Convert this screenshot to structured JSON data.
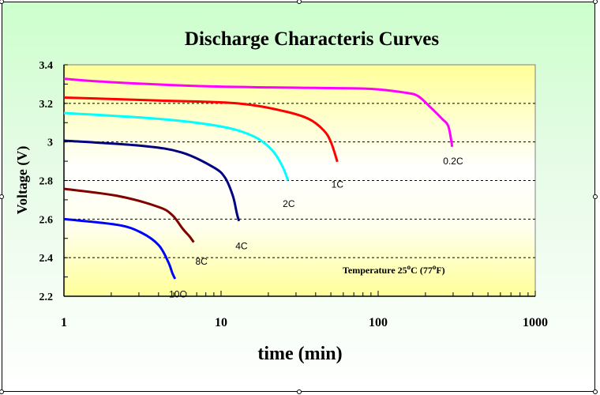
{
  "chart_data": {
    "type": "line",
    "title": "Discharge Characteris Curves",
    "xlabel": "time (min)",
    "ylabel": "Voltage (V)",
    "xscale": "log",
    "xlim": [
      1,
      1000
    ],
    "ylim": [
      2.2,
      3.4
    ],
    "x_ticks": [
      "1",
      "10",
      "100",
      "1000"
    ],
    "x_tick_values": [
      1,
      10,
      100,
      1000
    ],
    "y_ticks": [
      "2.2",
      "2.4",
      "2.6",
      "2.8",
      "3",
      "3.2",
      "3.4"
    ],
    "y_tick_values": [
      2.2,
      2.4,
      2.6,
      2.8,
      3.0,
      3.2,
      3.4
    ],
    "gridlines_y": [
      2.4,
      2.6,
      2.8,
      3.0,
      3.2
    ],
    "grid": "horizontal dashed",
    "annotation": {
      "text_main": "Temperature  25",
      "deg": "o",
      "c": "C  (77",
      "deg2": "o",
      "f": "F)"
    },
    "series": [
      {
        "name": "0.2C",
        "color": "#ff00ff",
        "x": [
          1,
          2,
          7.1,
          20,
          40,
          90,
          150,
          180,
          215,
          255,
          280,
          296
        ],
        "y": [
          3.327,
          3.31,
          3.29,
          3.283,
          3.28,
          3.275,
          3.255,
          3.237,
          3.18,
          3.12,
          3.08,
          2.975
        ],
        "label_at": [
          300,
          2.9
        ]
      },
      {
        "name": "1C",
        "color": "#ff0000",
        "x": [
          1,
          4,
          12.6,
          25,
          36,
          45,
          50,
          55
        ],
        "y": [
          3.23,
          3.215,
          3.2,
          3.16,
          3.12,
          3.06,
          3.0,
          2.897
        ],
        "label_at": [
          55,
          2.78
        ]
      },
      {
        "name": "2C",
        "color": "#00ffff",
        "x": [
          1,
          4,
          10,
          16,
          21,
          24.5,
          26.7
        ],
        "y": [
          3.15,
          3.12,
          3.08,
          3.03,
          2.96,
          2.876,
          2.8
        ],
        "label_at": [
          27,
          2.68
        ]
      },
      {
        "name": "4C",
        "color": "#000080",
        "x": [
          1,
          3.1,
          5.6,
          8.9,
          10.6,
          11.9,
          12.6,
          13
        ],
        "y": [
          3.007,
          2.98,
          2.946,
          2.87,
          2.815,
          2.72,
          2.63,
          2.59
        ],
        "label_at": [
          13.5,
          2.46
        ]
      },
      {
        "name": "8C",
        "color": "#800000",
        "x": [
          1,
          2.2,
          4,
          4.9,
          5.7,
          6.3,
          6.7
        ],
        "y": [
          2.757,
          2.72,
          2.663,
          2.62,
          2.55,
          2.51,
          2.48
        ],
        "label_at": [
          7.5,
          2.38
        ]
      },
      {
        "name": "10C",
        "color": "#0000ff",
        "x": [
          1,
          2.2,
          3.1,
          4,
          4.6,
          4.9,
          5.1
        ],
        "y": [
          2.6,
          2.57,
          2.53,
          2.466,
          2.38,
          2.32,
          2.29
        ],
        "label_at": [
          5.3,
          2.21
        ]
      }
    ]
  },
  "colors": {
    "plot_top": "#ffff99",
    "plot_mid": "#ffffff",
    "frame_top": "#ccffcc"
  }
}
